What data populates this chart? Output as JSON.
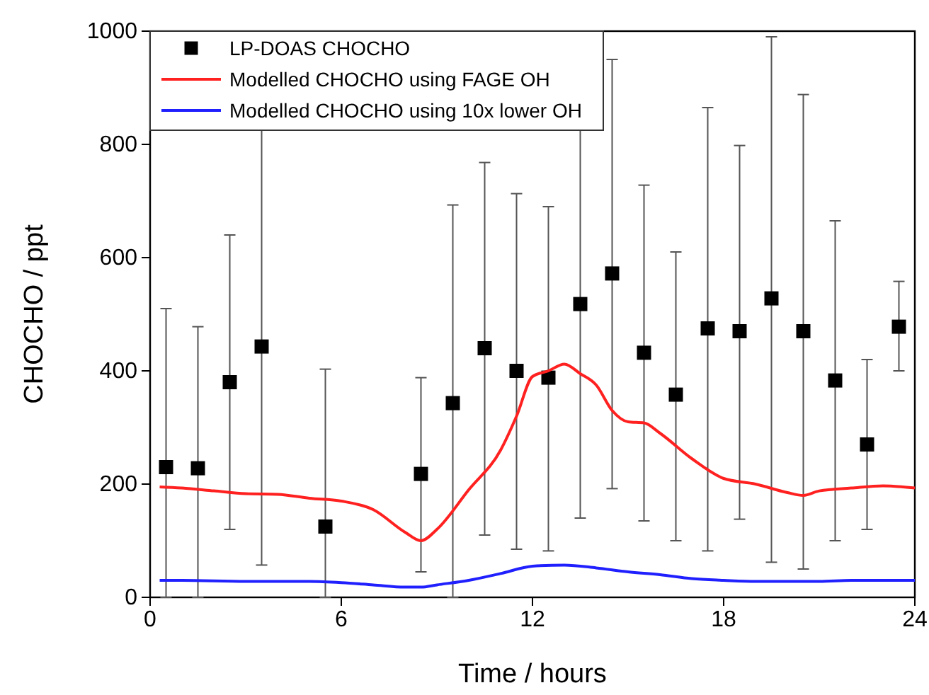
{
  "chart_data": {
    "type": "scatter",
    "xlabel": "Time / hours",
    "ylabel": "CHOCHO / ppt",
    "xlim": [
      0,
      24
    ],
    "xticks": [
      0,
      6,
      12,
      18,
      24
    ],
    "ylim": [
      0,
      1000
    ],
    "yticks": [
      0,
      200,
      400,
      600,
      800,
      1000
    ],
    "grid": false,
    "legend": "top left",
    "series": [
      {
        "name": "LP-DOAS CHOCHO",
        "marker": "square",
        "color": "#000000",
        "x": [
          0.5,
          1.5,
          2.5,
          3.5,
          5.5,
          8.5,
          9.5,
          10.5,
          11.5,
          12.5,
          13.5,
          14.5,
          15.5,
          16.5,
          17.5,
          18.5,
          19.5,
          20.5,
          21.5,
          22.5,
          23.5
        ],
        "values": [
          230,
          228,
          380,
          443,
          125,
          218,
          343,
          440,
          400,
          388,
          518,
          572,
          432,
          358,
          475,
          470,
          528,
          470,
          383,
          270,
          478
        ],
        "errors": [
          [
            0,
            510
          ],
          [
            0,
            478
          ],
          [
            120,
            640
          ],
          [
            57,
            826
          ],
          [
            0,
            403
          ],
          [
            45,
            388
          ],
          [
            0,
            693
          ],
          [
            110,
            768
          ],
          [
            85,
            713
          ],
          [
            82,
            690
          ],
          [
            140,
            860
          ],
          [
            192,
            950
          ],
          [
            135,
            728
          ],
          [
            100,
            610
          ],
          [
            82,
            865
          ],
          [
            138,
            798
          ],
          [
            62,
            990
          ],
          [
            50,
            888
          ],
          [
            100,
            665
          ],
          [
            120,
            420
          ],
          [
            400,
            558
          ]
        ]
      },
      {
        "name": "Modelled CHOCHO using FAGE OH",
        "type": "line",
        "line_style": "solid",
        "color": "#ff2020",
        "x": [
          0.3,
          1,
          2,
          3,
          4,
          5,
          6,
          7,
          8,
          8.5,
          9,
          10,
          11,
          11.5,
          12,
          12.5,
          13,
          13.5,
          14,
          14.5,
          15,
          15.5,
          16,
          17,
          18,
          19,
          20,
          20.5,
          21,
          22,
          23,
          24
        ],
        "values": [
          195,
          193,
          188,
          183,
          182,
          175,
          170,
          155,
          115,
          100,
          120,
          190,
          260,
          320,
          390,
          400,
          412,
          395,
          375,
          330,
          310,
          308,
          290,
          245,
          210,
          200,
          185,
          180,
          188,
          193,
          197,
          193
        ]
      },
      {
        "name": "Modelled CHOCHO using 10x lower OH",
        "type": "line",
        "line_style": "solid",
        "color": "#2020ff",
        "x": [
          0.3,
          1,
          3,
          5,
          6,
          7,
          8,
          8.5,
          9,
          10,
          11,
          12,
          13,
          14,
          15,
          16,
          17,
          18,
          19,
          20,
          21,
          22,
          23,
          24
        ],
        "values": [
          30,
          30,
          28,
          28,
          26,
          22,
          18,
          18,
          22,
          30,
          42,
          55,
          57,
          52,
          45,
          40,
          33,
          30,
          28,
          28,
          28,
          30,
          30,
          30
        ]
      }
    ]
  }
}
